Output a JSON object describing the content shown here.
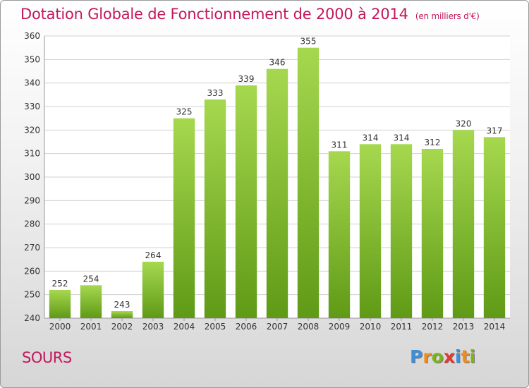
{
  "header": {
    "title": "Dotation Globale de Fonctionnement de 2000 à 2014",
    "subtitle": "(en milliers d'€)"
  },
  "footer": {
    "place": "SOURS",
    "brand_letters": [
      {
        "ch": "P",
        "color": "#3d8fd6"
      },
      {
        "ch": "r",
        "color": "#f28c1b"
      },
      {
        "ch": "o",
        "color": "#7cb518"
      },
      {
        "ch": "x",
        "color": "#e53935"
      },
      {
        "ch": "i",
        "color": "#3d8fd6"
      },
      {
        "ch": "t",
        "color": "#f28c1b"
      },
      {
        "ch": "i",
        "color": "#7cb518"
      }
    ]
  },
  "chart_data": {
    "type": "bar",
    "categories": [
      "2000",
      "2001",
      "2002",
      "2003",
      "2004",
      "2005",
      "2006",
      "2007",
      "2008",
      "2009",
      "2010",
      "2011",
      "2012",
      "2013",
      "2014"
    ],
    "values": [
      252,
      254,
      243,
      264,
      325,
      333,
      339,
      346,
      355,
      311,
      314,
      314,
      312,
      320,
      317
    ],
    "title": "Dotation Globale de Fonctionnement de 2000 à 2014",
    "subtitle": "(en milliers d'€)",
    "xlabel": "",
    "ylabel": "",
    "ylim": [
      240,
      360
    ],
    "ytick_step": 10,
    "grid": true,
    "bar_color_top": "#a6d84f",
    "bar_color_bottom": "#5f9a16",
    "colors": {
      "title": "#c2185b",
      "grid": "#d0d0d0",
      "axis_text": "#333333"
    }
  }
}
